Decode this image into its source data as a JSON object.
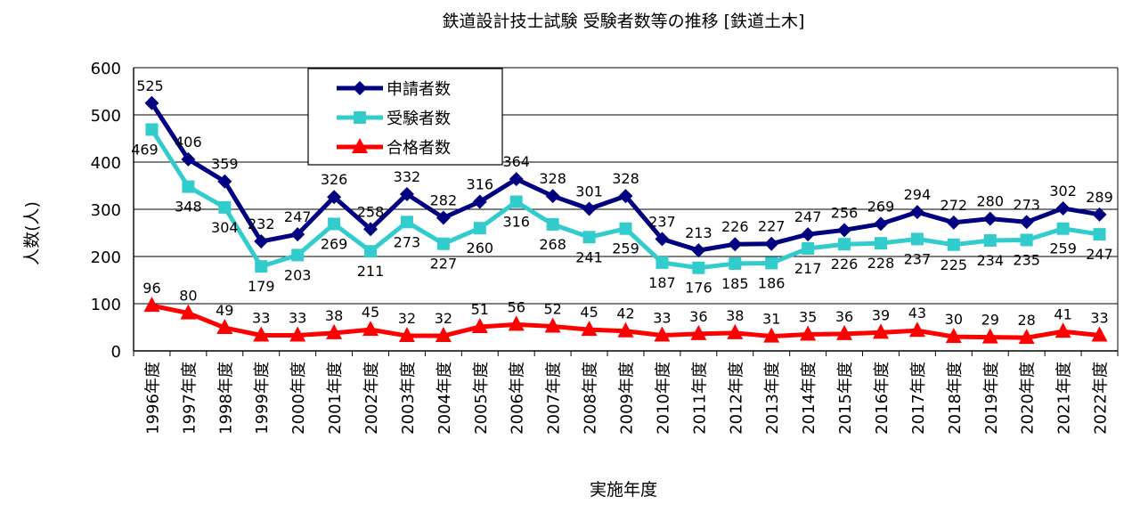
{
  "chart_data": {
    "type": "line",
    "title": "鉄道設計技士試験 受験者数等の推移 [鉄道土木]",
    "xlabel": "実施年度",
    "ylabel": "人数(人)",
    "ylim": [
      0,
      600
    ],
    "yticks": [
      0,
      100,
      200,
      300,
      400,
      500,
      600
    ],
    "grid": true,
    "legend_position": "top-left",
    "categories": [
      "1996年度",
      "1997年度",
      "1998年度",
      "1999年度",
      "2000年度",
      "2001年度",
      "2002年度",
      "2003年度",
      "2004年度",
      "2005年度",
      "2006年度",
      "2007年度",
      "2008年度",
      "2009年度",
      "2010年度",
      "2011年度",
      "2012年度",
      "2013年度",
      "2014年度",
      "2015年度",
      "2016年度",
      "2017年度",
      "2018年度",
      "2019年度",
      "2020年度",
      "2021年度",
      "2022年度"
    ],
    "series": [
      {
        "name": "申請者数",
        "color": "#000080",
        "marker": "diamond",
        "values": [
          525,
          406,
          359,
          232,
          247,
          326,
          258,
          332,
          282,
          316,
          364,
          328,
          301,
          328,
          237,
          213,
          226,
          227,
          247,
          256,
          269,
          294,
          272,
          280,
          273,
          302,
          289
        ]
      },
      {
        "name": "受験者数",
        "color": "#33CCCC",
        "marker": "square",
        "values": [
          469,
          348,
          304,
          179,
          203,
          269,
          211,
          273,
          227,
          260,
          316,
          268,
          241,
          259,
          187,
          176,
          185,
          186,
          217,
          226,
          228,
          237,
          225,
          234,
          235,
          259,
          247
        ]
      },
      {
        "name": "合格者数",
        "color": "#FF0000",
        "marker": "triangle",
        "values": [
          96,
          80,
          49,
          33,
          33,
          38,
          45,
          32,
          32,
          51,
          56,
          52,
          45,
          42,
          33,
          36,
          38,
          31,
          35,
          36,
          39,
          43,
          30,
          29,
          28,
          41,
          33
        ]
      }
    ]
  }
}
